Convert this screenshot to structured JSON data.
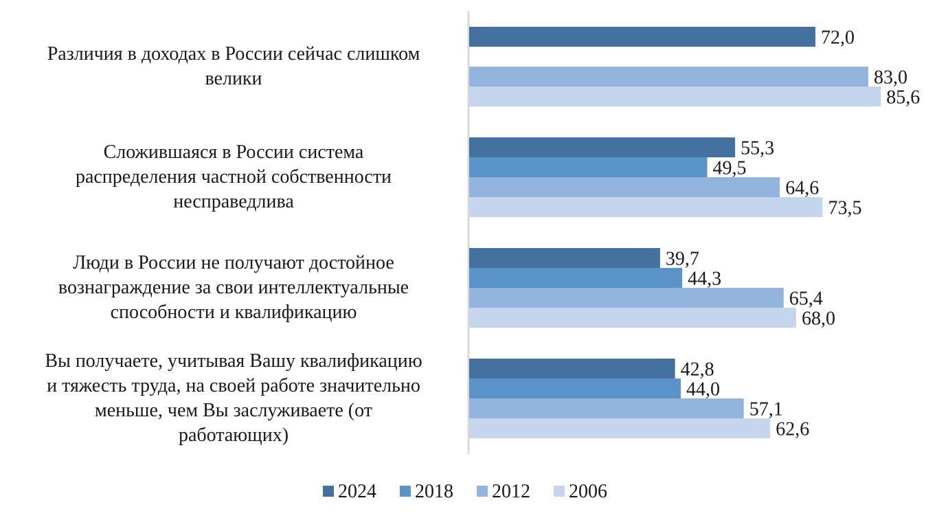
{
  "chart_data": {
    "type": "bar",
    "orientation": "horizontal",
    "title": "",
    "xlabel": "",
    "ylabel": "",
    "xlim": [
      0,
      100
    ],
    "grid": false,
    "legend_position": "bottom",
    "categories": [
      [
        "Различия в доходах в России сейчас слишком",
        "велики"
      ],
      [
        "Сложившаяся в России система",
        "распределения частной собственности",
        "несправедлива"
      ],
      [
        "Люди в России не получают достойное",
        "вознаграждение за свои интеллектуальные",
        "способности и квалификацию"
      ],
      [
        "Вы получаете, учитывая Вашу квалификацию",
        "и тяжесть труда, на своей работе значительно",
        "меньше, чем Вы заслуживаете (от",
        "работающих)"
      ]
    ],
    "series": [
      {
        "name": "2024",
        "color": "#44719F",
        "values": [
          72.0,
          55.3,
          39.7,
          42.8
        ],
        "labels": [
          "72,0",
          "55,3",
          "39,7",
          "42,8"
        ]
      },
      {
        "name": "2018",
        "color": "#5A93C8",
        "values": [
          null,
          49.5,
          44.3,
          44.0
        ],
        "labels": [
          "",
          "49,5",
          "44,3",
          "44,0"
        ]
      },
      {
        "name": "2012",
        "color": "#93B4DD",
        "values": [
          83.0,
          64.6,
          65.4,
          57.1
        ],
        "labels": [
          "83,0",
          "64,6",
          "65,4",
          "57,1"
        ]
      },
      {
        "name": "2006",
        "color": "#C6D5EE",
        "values": [
          85.6,
          73.5,
          68.0,
          62.6
        ],
        "labels": [
          "85,6",
          "73,5",
          "68,0",
          "62,6"
        ]
      }
    ],
    "axis_color": "#D9D9D9"
  }
}
